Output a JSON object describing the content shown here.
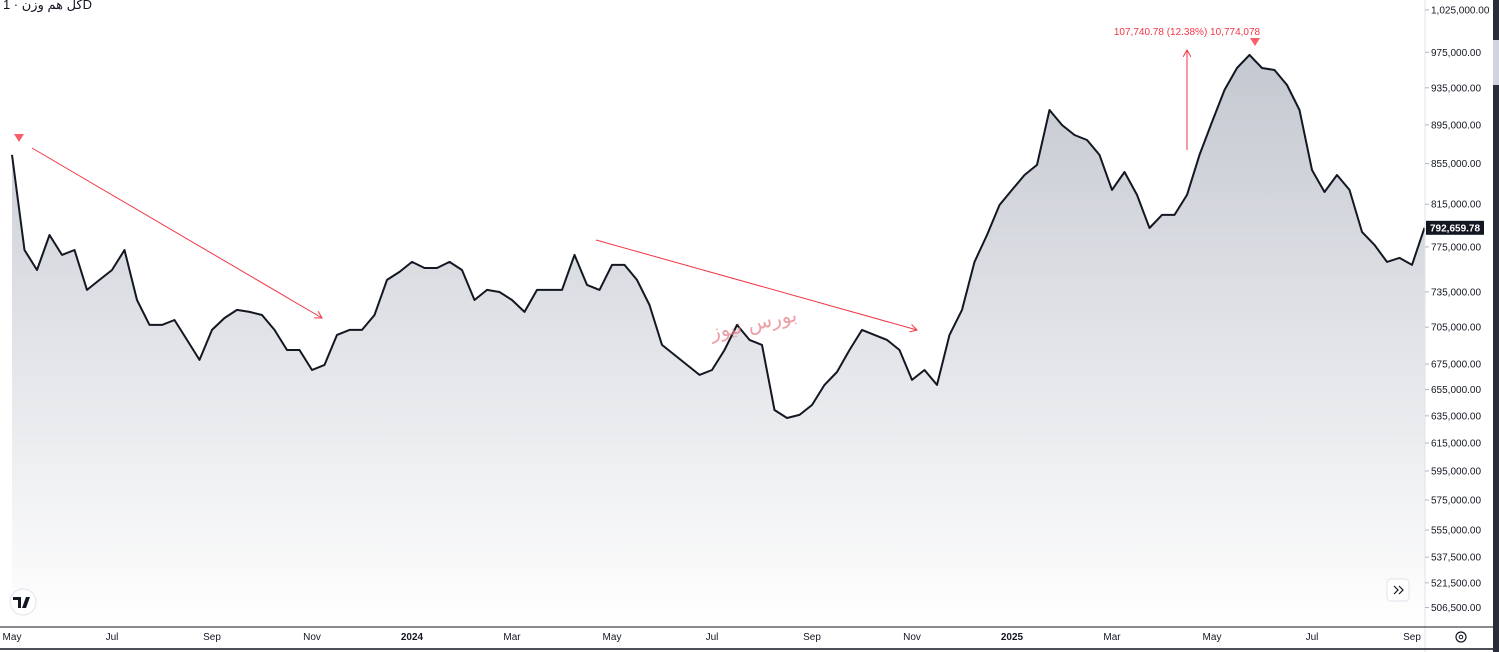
{
  "chart_data": {
    "type": "area",
    "title": "کل هم وزن · 1D",
    "annotation": "107,740.78 (12.38%) 10,774,078",
    "watermark": "بورس نیوز",
    "log_scale": true,
    "grid": false,
    "color": "#131722",
    "fill_top": "#c4c8d0",
    "fill_bottom": "#ffffff",
    "annotation_color": "#f23645",
    "categories": [
      "May",
      null,
      null,
      null,
      null,
      null,
      null,
      null,
      "Jul",
      null,
      null,
      null,
      null,
      null,
      null,
      null,
      "Sep",
      null,
      null,
      null,
      null,
      null,
      null,
      null,
      "Nov",
      null,
      null,
      null,
      null,
      null,
      null,
      null,
      "2024",
      null,
      null,
      null,
      null,
      null,
      null,
      null,
      "Mar",
      null,
      null,
      null,
      null,
      null,
      null,
      null,
      "May",
      null,
      null,
      null,
      null,
      null,
      null,
      null,
      "Jul",
      null,
      null,
      null,
      null,
      null,
      null,
      null,
      "Sep",
      null,
      null,
      null,
      null,
      null,
      null,
      null,
      "Nov",
      null,
      null,
      null,
      null,
      null,
      null,
      null,
      "2025",
      null,
      null,
      null,
      null,
      null,
      null,
      null,
      "Mar",
      null,
      null,
      null,
      null,
      null,
      null,
      null,
      "May",
      null,
      null,
      null,
      null,
      null,
      null,
      null,
      "Jul",
      null,
      null,
      null,
      null,
      null,
      null,
      null,
      "Sep",
      null
    ],
    "values": [
      863800,
      772200,
      754200,
      786000,
      767700,
      772200,
      736700,
      745400,
      754200,
      772200,
      728000,
      706900,
      706900,
      711000,
      694500,
      678300,
      702700,
      712700,
      719500,
      717800,
      715200,
      702700,
      686300,
      686300,
      670300,
      674300,
      698600,
      702700,
      702700,
      715200,
      745400,
      752500,
      761400,
      756000,
      756000,
      761400,
      754200,
      728000,
      736700,
      734900,
      728000,
      717800,
      736700,
      736700,
      736700,
      767700,
      741000,
      736700,
      758700,
      758700,
      745400,
      723700,
      690400,
      682300,
      674300,
      666400,
      670300,
      686300,
      706900,
      694500,
      690400,
      639400,
      633400,
      635700,
      643200,
      658600,
      668700,
      686300,
      702700,
      698600,
      694500,
      686300,
      662500,
      670300,
      658600,
      698600,
      719500,
      761400,
      786000,
      814300,
      828900,
      843600,
      853700,
      910800,
      894900,
      884400,
      879200,
      863800,
      828900,
      846600,
      824000,
      792500,
      804800,
      804800,
      824000,
      863800,
      898000,
      932600,
      957100,
      972000,
      957100,
      954800,
      938100,
      910800,
      848600,
      826900,
      843600,
      828900,
      788800,
      776800,
      761400,
      765000,
      758700,
      792659.78
    ],
    "value_labels": [
      null,
      null,
      null,
      null,
      null,
      null,
      null,
      null,
      null,
      null,
      null,
      null,
      null,
      null,
      null,
      null,
      null,
      null,
      null,
      null,
      null,
      null,
      null,
      null,
      null,
      null,
      null,
      null,
      null,
      null,
      null,
      null,
      null,
      null,
      null,
      null,
      null,
      null,
      null,
      null,
      null,
      null,
      null,
      null,
      null,
      null,
      null,
      null,
      null,
      null,
      null,
      null,
      null,
      null,
      null,
      null,
      null,
      null,
      null,
      null,
      null,
      null,
      null,
      null,
      null,
      null,
      null,
      null,
      null,
      null,
      null,
      null,
      null,
      null,
      null,
      null,
      null,
      null,
      null,
      null,
      null,
      null,
      null,
      null,
      null,
      null,
      null,
      null,
      null,
      null,
      null,
      null,
      null,
      null,
      null,
      null,
      null,
      null,
      null,
      null,
      null,
      null,
      null,
      null,
      null,
      null,
      null,
      null,
      null,
      null,
      null,
      null,
      null,
      "792,659.78"
    ],
    "ylim": [
      495000,
      1037000
    ],
    "yticks": [
      {
        "value": 1025000,
        "label": "1,025,000.00"
      },
      {
        "value": 975000,
        "label": "975,000.00"
      },
      {
        "value": 935000,
        "label": "935,000.00"
      },
      {
        "value": 895000,
        "label": "895,000.00"
      },
      {
        "value": 855000,
        "label": "855,000.00"
      },
      {
        "value": 815000,
        "label": "815,000.00"
      },
      {
        "value": 775000,
        "label": "775,000.00"
      },
      {
        "value": 735000,
        "label": "735,000.00"
      },
      {
        "value": 705000,
        "label": "705,000.00"
      },
      {
        "value": 675000,
        "label": "675,000.00"
      },
      {
        "value": 655000,
        "label": "655,000.00"
      },
      {
        "value": 635000,
        "label": "635,000.00"
      },
      {
        "value": 615000,
        "label": "615,000.00"
      },
      {
        "value": 595000,
        "label": "595,000.00"
      },
      {
        "value": 575000,
        "label": "575,000.00"
      },
      {
        "value": 555000,
        "label": "555,000.00"
      },
      {
        "value": 537500,
        "label": "537,500.00"
      },
      {
        "value": 521500,
        "label": "521,500.00"
      },
      {
        "value": 506500,
        "label": "506,500.00"
      }
    ]
  }
}
